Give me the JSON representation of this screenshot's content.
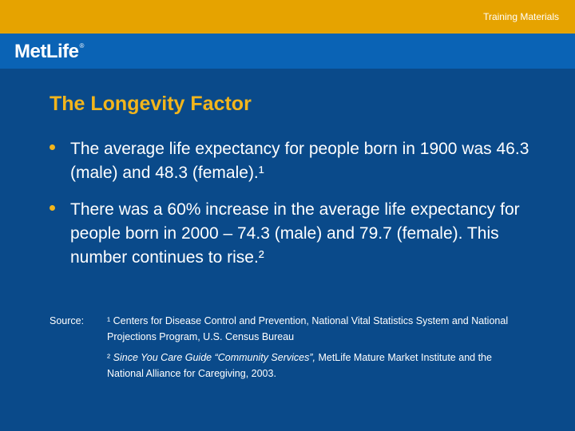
{
  "header": {
    "tag": "Training Materials"
  },
  "brand": {
    "logo": "MetLife",
    "mark": "®"
  },
  "slide": {
    "title": "The Longevity Factor",
    "bullets": [
      "The average life expectancy for people born in 1900 was 46.3 (male) and 48.3 (female).¹",
      "There was a 60% increase in the average life expectancy for people born in 2000 – 74.3 (male) and 79.7 (female). This number continues to rise.²"
    ]
  },
  "source": {
    "label": "Source:",
    "note1": "¹ Centers for Disease Control and Prevention, National Vital Statistics System and National Projections Program, U.S. Census Bureau",
    "note2_prefix": "² ",
    "note2_title": "Since You Care Guide “Community Services”,",
    "note2_rest": " MetLife Mature Market Institute and the National Alliance for Caregiving, 2003."
  },
  "colors": {
    "top_bar": "#e6a300",
    "logo_band": "#0a63b5",
    "background": "#0a4a8a",
    "accent": "#f2b51c"
  }
}
